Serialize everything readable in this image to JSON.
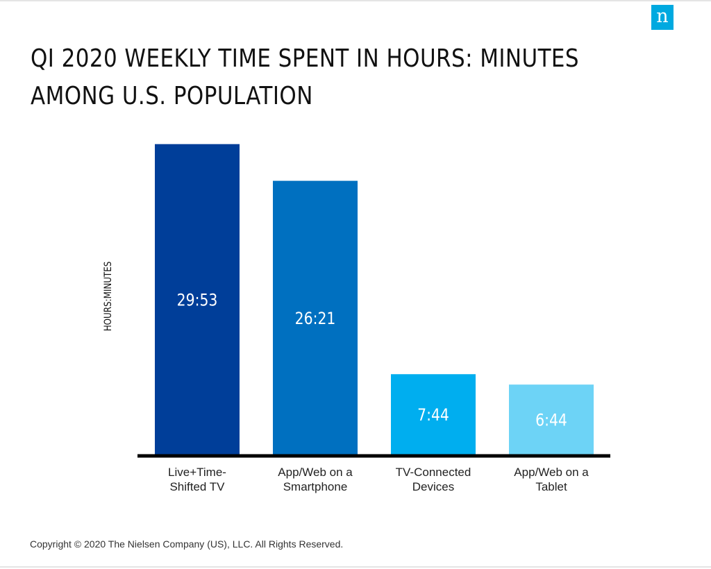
{
  "logo": {
    "text": "n",
    "icon": "nielsen-logo-icon",
    "color": "#00a9e0"
  },
  "chart_data": {
    "type": "bar",
    "title_lines": [
      "QI 2020 WEEKLY TIME SPENT IN HOURS: MINUTES",
      "AMONG U.S. POPULATION"
    ],
    "ylabel": "HOURS:MINUTES",
    "xlabel": "",
    "categories": [
      [
        "Live+Time-",
        "Shifted TV"
      ],
      [
        "App/Web on a",
        "Smartphone"
      ],
      [
        "TV-Connected",
        "Devices"
      ],
      [
        "App/Web on a",
        "Tablet"
      ]
    ],
    "values": [
      29.883,
      26.35,
      7.733,
      6.733
    ],
    "data_labels": [
      "29:53",
      "26:21",
      "7:44",
      "6:44"
    ],
    "colors": [
      "#003e99",
      "#0070c0",
      "#00aeef",
      "#6dd3f6"
    ],
    "ylim": [
      0,
      32
    ],
    "grid": false,
    "legend": "none"
  },
  "footer": {
    "copyright": "Copyright © 2020 The Nielsen Company (US), LLC. All Rights Reserved."
  }
}
